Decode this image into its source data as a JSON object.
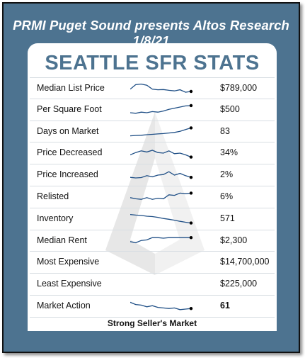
{
  "header": {
    "title": "PRMI Puget Sound presents Altos Research 1/8/21"
  },
  "card": {
    "title": "SEATTLE SFR STATS",
    "footer": "Strong Seller's Market"
  },
  "rows": [
    {
      "label": "Median List Price",
      "value": "$789,000",
      "bold": false,
      "spark": [
        0.45,
        0.85,
        0.9,
        0.8,
        0.45,
        0.4,
        0.42,
        0.35,
        0.3,
        0.4,
        0.18,
        0.25
      ]
    },
    {
      "label": "Per Square Foot",
      "value": "$500",
      "bold": false,
      "spark": [
        0.25,
        0.2,
        0.3,
        0.25,
        0.35,
        0.3,
        0.4,
        0.55,
        0.65,
        0.75,
        0.85,
        0.88
      ]
    },
    {
      "label": "Days on Market",
      "value": "83",
      "bold": false,
      "spark": [
        0.15,
        0.18,
        0.2,
        0.25,
        0.28,
        0.32,
        0.35,
        0.4,
        0.45,
        0.55,
        0.7,
        0.85
      ]
    },
    {
      "label": "Price Decreased",
      "value": "34%",
      "bold": false,
      "spark": [
        0.35,
        0.55,
        0.7,
        0.6,
        0.75,
        0.55,
        0.5,
        0.7,
        0.45,
        0.5,
        0.35,
        0.15
      ]
    },
    {
      "label": "Price Increased",
      "value": "2%",
      "bold": false,
      "spark": [
        0.3,
        0.25,
        0.28,
        0.45,
        0.35,
        0.5,
        0.55,
        0.8,
        0.5,
        0.65,
        0.45,
        0.3
      ]
    },
    {
      "label": "Relisted",
      "value": "6%",
      "bold": false,
      "spark": [
        0.45,
        0.35,
        0.3,
        0.45,
        0.3,
        0.4,
        0.35,
        0.7,
        0.65,
        0.85,
        0.8,
        0.85
      ]
    },
    {
      "label": "Inventory",
      "value": "571",
      "bold": false,
      "spark": [
        0.9,
        0.85,
        0.82,
        0.75,
        0.72,
        0.65,
        0.55,
        0.48,
        0.4,
        0.3,
        0.22,
        0.15
      ]
    },
    {
      "label": "Median Rent",
      "value": "$2,300",
      "bold": false,
      "spark": [
        0.45,
        0.35,
        0.55,
        0.6,
        0.8,
        0.8,
        0.75,
        0.8,
        0.8,
        0.8,
        0.8,
        0.8
      ]
    },
    {
      "label": "Most Expensive",
      "value": "$14,700,000",
      "bold": false,
      "spark": []
    },
    {
      "label": "Least Expensive",
      "value": "$225,000",
      "bold": false,
      "spark": []
    },
    {
      "label": "Market Action",
      "value": "61",
      "bold": true,
      "spark": [
        0.85,
        0.65,
        0.6,
        0.45,
        0.55,
        0.4,
        0.35,
        0.3,
        0.35,
        0.2,
        0.25,
        0.3
      ]
    }
  ],
  "colors": {
    "frame": "#4d7390",
    "title": "#4d7390",
    "spark": "#1f4f86"
  }
}
